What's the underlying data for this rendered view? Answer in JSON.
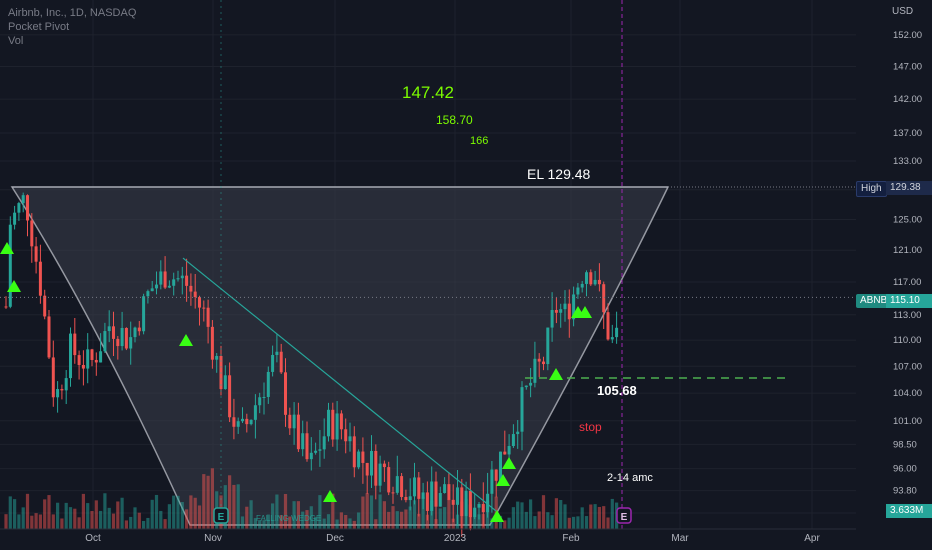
{
  "legend": {
    "symbol": "Airbnb, Inc., 1D, NASDAQ",
    "indicator1": "Pocket Pivot",
    "indicator2": "Vol"
  },
  "currency_label": "USD",
  "annotations": {
    "target1": "147.42",
    "target2": "158.70",
    "target3": "166",
    "entry_label": "EL 129.48",
    "support_label": "105.68",
    "stop_label": "stop",
    "earnings_note": "2-14 amc",
    "trendline_label": "FALLING WEDGE",
    "earnings_marker": "E"
  },
  "price_tags": {
    "high_key": "High",
    "high_value": "129.38",
    "symbol_key": "ABNB",
    "symbol_value": "115.10",
    "volume_value": "3.633M"
  },
  "colors": {
    "background": "#131722",
    "up": "#26a69a",
    "down": "#ef5350",
    "target_green": "#7cfc00",
    "signal_triangle": "#39ff14",
    "cup_fill": "#3a3e4a",
    "trendline": "#26a69a",
    "dashed_support": "#4caf50",
    "earnings_line": "#9c27b0",
    "stop_red": "#f23645"
  },
  "chart_data": {
    "type": "candlestick",
    "ylim": [
      91.6,
      156
    ],
    "y_scale": "log",
    "y_ticks": [
      "152.00",
      "147.00",
      "142.00",
      "137.00",
      "133.00",
      "129.00",
      "125.00",
      "121.00",
      "117.00",
      "113.00",
      "110.00",
      "107.00",
      "104.00",
      "101.00",
      "98.50",
      "96.00",
      "93.80",
      "91.60"
    ],
    "x_ticks": [
      "Oct",
      "Nov",
      "Dec",
      "2023",
      "Feb",
      "Mar",
      "Apr"
    ],
    "levels": {
      "cup_rim": 129.38,
      "support": 105.68,
      "last_price": 115.1
    },
    "candles_count": 145,
    "last_volume": "3.633M"
  }
}
